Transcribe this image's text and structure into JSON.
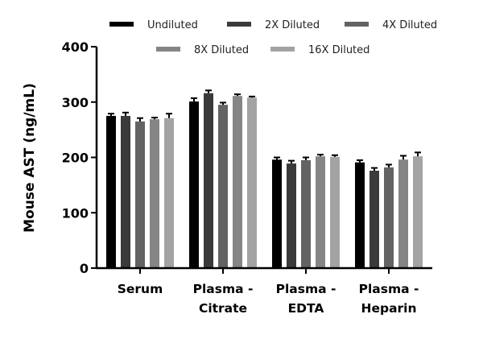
{
  "chart_data": {
    "type": "bar",
    "title": "",
    "xlabel": "",
    "ylabel": "Mouse AST (ng/mL)",
    "ylim": [
      0,
      400
    ],
    "yticks": [
      0,
      100,
      200,
      300,
      400
    ],
    "grid": false,
    "legend_position": "top",
    "categories": [
      [
        "Serum"
      ],
      [
        "Plasma -",
        "Citrate"
      ],
      [
        "Plasma -",
        "EDTA"
      ],
      [
        "Plasma -",
        "Heparin"
      ]
    ],
    "series": [
      {
        "name": "Undiluted",
        "color": "#000000",
        "values": [
          275,
          301,
          196,
          191
        ],
        "errors": [
          4,
          6,
          4,
          4
        ]
      },
      {
        "name": "2X Diluted",
        "color": "#3a3a3a",
        "values": [
          275,
          316,
          189,
          176
        ],
        "errors": [
          6,
          5,
          5,
          5
        ]
      },
      {
        "name": "4X Diluted",
        "color": "#636363",
        "values": [
          265,
          295,
          195,
          182
        ],
        "errors": [
          6,
          4,
          5,
          5
        ]
      },
      {
        "name": "8X Diluted",
        "color": "#858585",
        "values": [
          269,
          311,
          202,
          196
        ],
        "errors": [
          3,
          3,
          3,
          7
        ]
      },
      {
        "name": "16X Diluted",
        "color": "#a3a3a3",
        "values": [
          271,
          308,
          201,
          202
        ],
        "errors": [
          8,
          2,
          3,
          7
        ]
      }
    ]
  }
}
